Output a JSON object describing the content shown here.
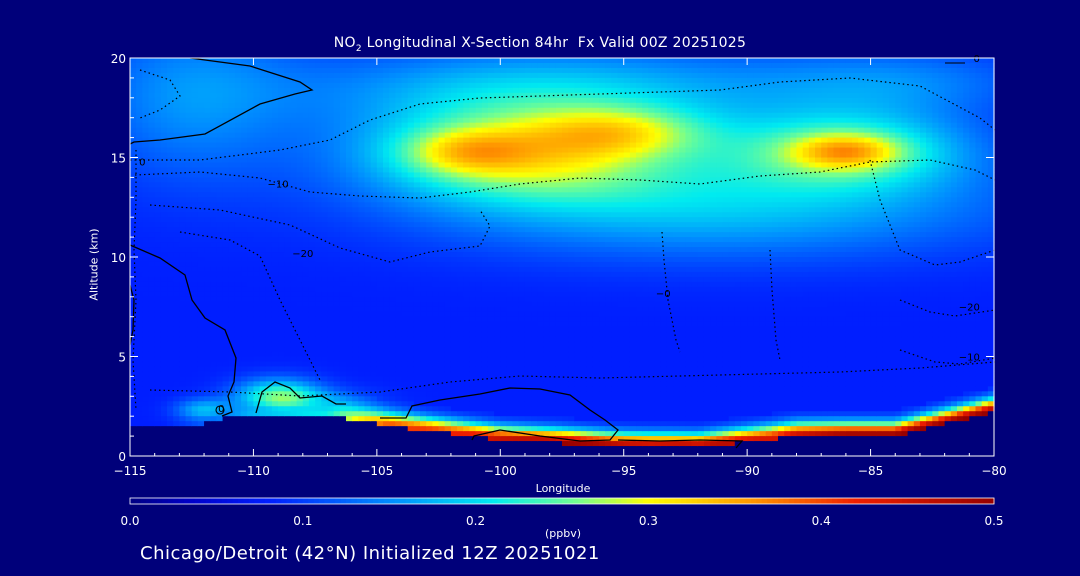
{
  "chart_data": {
    "type": "heatmap",
    "title_prefix": "NO",
    "title_sub": "2",
    "title_suffix": " Longitudinal X-Section 84hr  Fx Valid 00Z 20251025",
    "xlabel": "Longitude",
    "ylabel": "Altitude (km)",
    "xlim": [
      -115,
      -80
    ],
    "ylim": [
      0,
      20
    ],
    "x_ticks": [
      -115,
      -110,
      -105,
      -100,
      -95,
      -90,
      -85,
      -80
    ],
    "x_tick_labels": [
      "−115",
      "−110",
      "−105",
      "−100",
      "−95",
      "−90",
      "−85",
      "−80"
    ],
    "y_ticks": [
      0,
      5,
      10,
      15,
      20
    ],
    "y_tick_labels": [
      "0",
      "5",
      "10",
      "15",
      "20"
    ],
    "colorbar": {
      "label": "(ppbv)",
      "range": [
        0.0,
        0.5
      ],
      "ticks": [
        0.0,
        0.1,
        0.2,
        0.3,
        0.4,
        0.5
      ],
      "tick_labels": [
        "0.0",
        "0.1",
        "0.2",
        "0.3",
        "0.4",
        "0.5"
      ]
    },
    "contour_labels": [
      {
        "text": "0",
        "lon": -80.7,
        "alt": 19.8
      },
      {
        "text": "0",
        "lon": -114.5,
        "alt": 14.6
      },
      {
        "text": "−10",
        "lon": -109.0,
        "alt": 13.5
      },
      {
        "text": "−20",
        "lon": -108.0,
        "alt": 10.0
      },
      {
        "text": "−0",
        "lon": -93.4,
        "alt": 8.0
      },
      {
        "text": "−20",
        "lon": -81.0,
        "alt": 7.3
      },
      {
        "text": "−10",
        "lon": -81.0,
        "alt": 4.8
      },
      {
        "text": "0",
        "lon": -111.3,
        "alt": 2.2
      }
    ],
    "surface_altitude_km": {
      "lon": [
        -115,
        -112.5,
        -111,
        -108,
        -106.3,
        -104.5,
        -100,
        -95,
        -92,
        -88,
        -84,
        -82,
        -80
      ],
      "alt": [
        1.4,
        1.5,
        2.0,
        2.0,
        1.9,
        1.5,
        0.8,
        0.45,
        0.4,
        1.0,
        1.0,
        1.6,
        2.2
      ]
    },
    "fields": {
      "background": 0.08,
      "blobs": [
        {
          "lon": -99,
          "alt": 15.2,
          "slon": 4.5,
          "salt": 1.7,
          "v": 0.2
        },
        {
          "lon": -101.5,
          "alt": 15.3,
          "slon": 1.8,
          "salt": 0.8,
          "v": 0.08
        },
        {
          "lon": -95,
          "alt": 16.3,
          "slon": 2.5,
          "salt": 0.9,
          "v": 0.1
        },
        {
          "lon": -86,
          "alt": 15.4,
          "slon": 3.5,
          "salt": 1.4,
          "v": 0.16
        },
        {
          "lon": -86,
          "alt": 15.3,
          "slon": 1.5,
          "salt": 0.6,
          "v": 0.1
        },
        {
          "lon": -91,
          "alt": 12.5,
          "slon": 8,
          "salt": 1.8,
          "v": 0.1
        },
        {
          "lon": -98,
          "alt": 18.5,
          "slon": 7,
          "salt": 1.5,
          "v": 0.1
        },
        {
          "lon": -84,
          "alt": 18.8,
          "slon": 4,
          "salt": 1.2,
          "v": 0.06
        },
        {
          "lon": -112.5,
          "alt": 18,
          "slon": 3,
          "salt": 3,
          "v": 0.07
        },
        {
          "lon": -109,
          "alt": 3.0,
          "slon": 1.2,
          "salt": 0.6,
          "v": 0.17
        },
        {
          "lon": -112,
          "alt": 2.3,
          "slon": 0.8,
          "salt": 0.4,
          "v": 0.1
        },
        {
          "lon": -107,
          "alt": 2.6,
          "slon": 1.5,
          "salt": 0.5,
          "v": 0.06
        }
      ],
      "boundary_layer": {
        "depth_km": 0.8,
        "points": [
          {
            "lon": -115,
            "v": 0.05
          },
          {
            "lon": -112,
            "v": 0.12
          },
          {
            "lon": -110,
            "v": 0.18
          },
          {
            "lon": -107,
            "v": 0.22
          },
          {
            "lon": -104.5,
            "v": 0.4
          },
          {
            "lon": -102,
            "v": 0.42
          },
          {
            "lon": -98,
            "v": 0.5
          },
          {
            "lon": -94,
            "v": 0.48
          },
          {
            "lon": -92.5,
            "v": 0.5
          },
          {
            "lon": -89,
            "v": 0.44
          },
          {
            "lon": -86,
            "v": 0.5
          },
          {
            "lon": -80,
            "v": 0.5
          }
        ]
      }
    }
  },
  "footer": {
    "text": "Chicago/Detroit (42°N) Initialized 12Z 20251021"
  }
}
